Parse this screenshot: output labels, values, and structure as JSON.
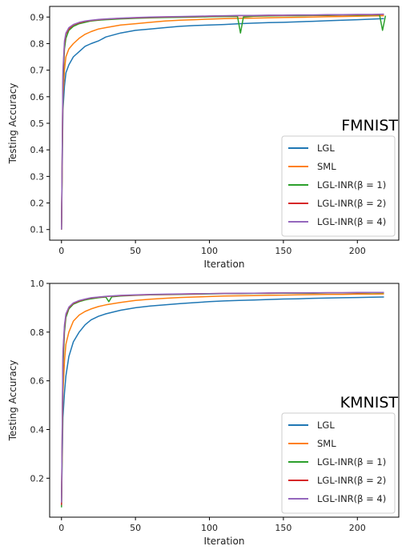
{
  "colors": {
    "LGL": "#1f77b4",
    "SML": "#ff7f0e",
    "INR1": "#2ca02c",
    "INR2": "#d62728",
    "INR4": "#9467bd"
  },
  "chart_data": [
    {
      "type": "line",
      "dataset_label": "FMNIST",
      "xlabel": "Iteration",
      "ylabel": "Testing Accuracy",
      "xlim": [
        -8,
        228
      ],
      "ylim": [
        0.06,
        0.94
      ],
      "xticks": [
        0,
        50,
        100,
        150,
        200
      ],
      "yticks": [
        0.1,
        0.2,
        0.3,
        0.4,
        0.5,
        0.6,
        0.7,
        0.8,
        0.9
      ],
      "ytick_labels": [
        "0.1",
        "0.2",
        "0.3",
        "0.4",
        "0.5",
        "0.6",
        "0.7",
        "0.8",
        "0.9"
      ],
      "legend_position": "lower-right",
      "series": [
        {
          "name": "LGL",
          "color_key": "LGL",
          "x": [
            0,
            1,
            2,
            3,
            5,
            8,
            12,
            16,
            20,
            25,
            30,
            40,
            50,
            60,
            70,
            80,
            90,
            100,
            110,
            120,
            130,
            140,
            150,
            160,
            170,
            180,
            190,
            200,
            210,
            218
          ],
          "y": [
            0.1,
            0.55,
            0.64,
            0.69,
            0.72,
            0.75,
            0.77,
            0.79,
            0.8,
            0.81,
            0.825,
            0.84,
            0.85,
            0.855,
            0.86,
            0.865,
            0.868,
            0.87,
            0.872,
            0.875,
            0.877,
            0.879,
            0.88,
            0.882,
            0.884,
            0.886,
            0.888,
            0.89,
            0.892,
            0.894
          ]
        },
        {
          "name": "SML",
          "color_key": "SML",
          "x": [
            0,
            1,
            2,
            3,
            5,
            8,
            12,
            16,
            20,
            25,
            30,
            40,
            50,
            60,
            70,
            80,
            90,
            100,
            110,
            120,
            130,
            140,
            150,
            160,
            170,
            180,
            190,
            200,
            210,
            218
          ],
          "y": [
            0.1,
            0.6,
            0.7,
            0.75,
            0.78,
            0.8,
            0.82,
            0.835,
            0.845,
            0.855,
            0.86,
            0.87,
            0.875,
            0.88,
            0.885,
            0.888,
            0.89,
            0.892,
            0.894,
            0.895,
            0.896,
            0.897,
            0.898,
            0.899,
            0.9,
            0.901,
            0.902,
            0.903,
            0.904,
            0.905
          ]
        },
        {
          "name": "LGL-INR(β = 1)",
          "color_key": "INR1",
          "x": [
            0,
            1,
            2,
            3,
            5,
            8,
            12,
            16,
            20,
            25,
            30,
            40,
            50,
            60,
            70,
            80,
            90,
            100,
            110,
            119,
            121,
            123,
            130,
            140,
            150,
            160,
            170,
            180,
            190,
            200,
            210,
            215,
            217,
            219
          ],
          "y": [
            0.1,
            0.65,
            0.78,
            0.82,
            0.85,
            0.865,
            0.875,
            0.88,
            0.885,
            0.888,
            0.89,
            0.893,
            0.895,
            0.897,
            0.898,
            0.899,
            0.9,
            0.901,
            0.902,
            0.902,
            0.84,
            0.9,
            0.903,
            0.904,
            0.905,
            0.905,
            0.906,
            0.906,
            0.907,
            0.907,
            0.908,
            0.908,
            0.85,
            0.905
          ]
        },
        {
          "name": "LGL-INR(β = 2)",
          "color_key": "INR2",
          "x": [
            0,
            1,
            2,
            3,
            5,
            8,
            12,
            16,
            20,
            25,
            30,
            40,
            50,
            60,
            70,
            80,
            90,
            100,
            110,
            120,
            130,
            140,
            150,
            160,
            170,
            180,
            190,
            200,
            210,
            218
          ],
          "y": [
            0.1,
            0.68,
            0.8,
            0.835,
            0.855,
            0.87,
            0.878,
            0.884,
            0.887,
            0.89,
            0.892,
            0.895,
            0.897,
            0.899,
            0.9,
            0.901,
            0.902,
            0.903,
            0.904,
            0.905,
            0.905,
            0.906,
            0.906,
            0.907,
            0.907,
            0.908,
            0.908,
            0.909,
            0.909,
            0.91
          ]
        },
        {
          "name": "LGL-INR(β = 4)",
          "color_key": "INR4",
          "x": [
            0,
            1,
            2,
            3,
            5,
            8,
            12,
            16,
            20,
            25,
            30,
            40,
            50,
            60,
            70,
            80,
            90,
            100,
            110,
            120,
            130,
            140,
            150,
            160,
            170,
            180,
            190,
            200,
            210,
            218
          ],
          "y": [
            0.1,
            0.7,
            0.81,
            0.84,
            0.86,
            0.872,
            0.88,
            0.885,
            0.888,
            0.891,
            0.893,
            0.896,
            0.898,
            0.9,
            0.901,
            0.902,
            0.903,
            0.904,
            0.905,
            0.906,
            0.906,
            0.907,
            0.907,
            0.908,
            0.908,
            0.909,
            0.909,
            0.91,
            0.91,
            0.911
          ]
        }
      ]
    },
    {
      "type": "line",
      "dataset_label": "KMNIST",
      "xlabel": "Iteration",
      "ylabel": "Testing Accuracy",
      "xlim": [
        -8,
        228
      ],
      "ylim": [
        0.04,
        1.0
      ],
      "xticks": [
        0,
        50,
        100,
        150,
        200
      ],
      "yticks": [
        0.2,
        0.4,
        0.6,
        0.8,
        1.0
      ],
      "ytick_labels": [
        "0.2",
        "0.4",
        "0.6",
        "0.8",
        "1.0"
      ],
      "legend_position": "lower-right",
      "series": [
        {
          "name": "LGL",
          "color_key": "LGL",
          "x": [
            0,
            1,
            2,
            3,
            5,
            8,
            12,
            16,
            20,
            25,
            30,
            40,
            50,
            60,
            70,
            80,
            90,
            100,
            110,
            120,
            130,
            140,
            150,
            160,
            170,
            180,
            190,
            200,
            210,
            218
          ],
          "y": [
            0.1,
            0.45,
            0.55,
            0.62,
            0.7,
            0.76,
            0.8,
            0.83,
            0.85,
            0.865,
            0.875,
            0.89,
            0.9,
            0.907,
            0.912,
            0.917,
            0.921,
            0.925,
            0.928,
            0.93,
            0.932,
            0.934,
            0.936,
            0.937,
            0.939,
            0.94,
            0.941,
            0.942,
            0.943,
            0.944
          ]
        },
        {
          "name": "SML",
          "color_key": "SML",
          "x": [
            0,
            1,
            2,
            3,
            5,
            8,
            12,
            16,
            20,
            25,
            30,
            40,
            50,
            60,
            70,
            80,
            90,
            100,
            110,
            120,
            130,
            140,
            150,
            160,
            170,
            180,
            190,
            200,
            210,
            218
          ],
          "y": [
            0.1,
            0.55,
            0.68,
            0.75,
            0.8,
            0.845,
            0.87,
            0.885,
            0.895,
            0.905,
            0.912,
            0.922,
            0.93,
            0.935,
            0.939,
            0.942,
            0.944,
            0.946,
            0.948,
            0.949,
            0.95,
            0.951,
            0.952,
            0.953,
            0.954,
            0.955,
            0.955,
            0.956,
            0.956,
            0.957
          ]
        },
        {
          "name": "LGL-INR(β = 1)",
          "color_key": "INR1",
          "x": [
            0,
            1,
            2,
            3,
            5,
            8,
            12,
            16,
            20,
            25,
            30,
            32,
            34,
            40,
            50,
            60,
            70,
            80,
            90,
            100,
            110,
            120,
            130,
            140,
            150,
            160,
            170,
            180,
            190,
            200,
            210,
            218
          ],
          "y": [
            0.08,
            0.65,
            0.8,
            0.86,
            0.895,
            0.915,
            0.925,
            0.932,
            0.937,
            0.941,
            0.944,
            0.925,
            0.945,
            0.948,
            0.951,
            0.953,
            0.954,
            0.955,
            0.956,
            0.957,
            0.958,
            0.958,
            0.959,
            0.959,
            0.96,
            0.96,
            0.96,
            0.961,
            0.961,
            0.961,
            0.962,
            0.962
          ]
        },
        {
          "name": "LGL-INR(β = 2)",
          "color_key": "INR2",
          "x": [
            0,
            1,
            2,
            3,
            5,
            8,
            12,
            16,
            20,
            25,
            30,
            40,
            50,
            60,
            70,
            80,
            90,
            100,
            110,
            120,
            130,
            140,
            150,
            160,
            170,
            180,
            190,
            200,
            210,
            218
          ],
          "y": [
            0.09,
            0.7,
            0.82,
            0.87,
            0.9,
            0.918,
            0.928,
            0.935,
            0.94,
            0.943,
            0.946,
            0.95,
            0.952,
            0.954,
            0.955,
            0.956,
            0.957,
            0.958,
            0.959,
            0.959,
            0.96,
            0.96,
            0.961,
            0.961,
            0.961,
            0.962,
            0.962,
            0.962,
            0.963,
            0.963
          ]
        },
        {
          "name": "LGL-INR(β = 4)",
          "color_key": "INR4",
          "x": [
            0,
            1,
            2,
            3,
            5,
            8,
            12,
            16,
            20,
            25,
            30,
            40,
            50,
            60,
            70,
            80,
            90,
            100,
            110,
            120,
            130,
            140,
            150,
            160,
            170,
            180,
            190,
            200,
            210,
            218
          ],
          "y": [
            0.1,
            0.72,
            0.83,
            0.875,
            0.903,
            0.92,
            0.93,
            0.936,
            0.941,
            0.944,
            0.947,
            0.951,
            0.953,
            0.955,
            0.956,
            0.957,
            0.958,
            0.958,
            0.959,
            0.96,
            0.96,
            0.961,
            0.961,
            0.961,
            0.962,
            0.962,
            0.962,
            0.963,
            0.963,
            0.963
          ]
        }
      ]
    }
  ]
}
